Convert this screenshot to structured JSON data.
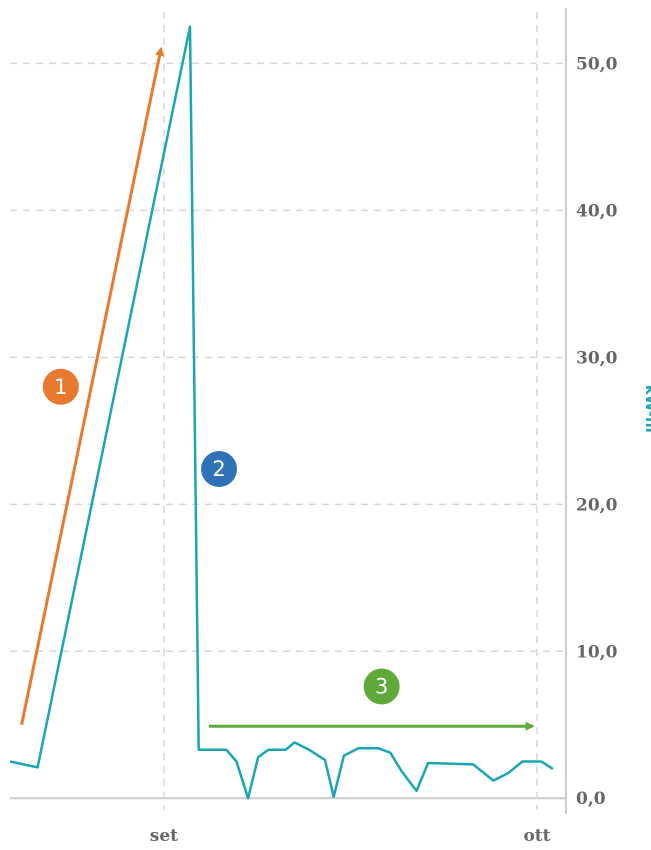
{
  "chart_data": {
    "type": "line",
    "ylabel": "kW-hr",
    "ylim": [
      -0.8,
      53.5
    ],
    "y_ticks": [
      {
        "value": 0,
        "label": "0,0"
      },
      {
        "value": 10,
        "label": "10,0"
      },
      {
        "value": 20,
        "label": "20,0"
      },
      {
        "value": 30,
        "label": "30,0"
      },
      {
        "value": 40,
        "label": "40,0"
      },
      {
        "value": 50,
        "label": "50,0"
      }
    ],
    "x_ticks": [
      {
        "position": 10.6,
        "label": "set"
      },
      {
        "position": 36.3,
        "label": "ott"
      }
    ],
    "xlim": [
      0,
      38.3
    ],
    "grid": true,
    "series": [
      {
        "color": "#1aa6b2",
        "points": [
          [
            0,
            2.5
          ],
          [
            1.9,
            2.1
          ],
          [
            12.4,
            52.5
          ],
          [
            13.0,
            3.3
          ],
          [
            14.9,
            3.3
          ],
          [
            15.6,
            2.5
          ],
          [
            16.4,
            0.0
          ],
          [
            17.1,
            2.8
          ],
          [
            17.8,
            3.3
          ],
          [
            19.0,
            3.3
          ],
          [
            19.6,
            3.8
          ],
          [
            20.6,
            3.3
          ],
          [
            21.7,
            2.6
          ],
          [
            22.3,
            0.1
          ],
          [
            23.0,
            2.9
          ],
          [
            24.0,
            3.4
          ],
          [
            25.4,
            3.4
          ],
          [
            26.2,
            3.1
          ],
          [
            27.0,
            1.8
          ],
          [
            28.0,
            0.5
          ],
          [
            28.8,
            2.4
          ],
          [
            31.9,
            2.3
          ],
          [
            33.3,
            1.2
          ],
          [
            34.3,
            1.7
          ],
          [
            35.3,
            2.5
          ],
          [
            36.6,
            2.5
          ],
          [
            37.4,
            2.0
          ]
        ]
      }
    ],
    "annotations": [
      {
        "label": "1",
        "type": "badge",
        "color": "#e87a30",
        "x": 3.5,
        "y": 28.0
      },
      {
        "label": "2",
        "type": "badge",
        "color": "#2e73b8",
        "x": 14.4,
        "y": 22.4
      },
      {
        "label": "3",
        "type": "badge",
        "color": "#5fa83a",
        "x": 25.6,
        "y": 7.6
      }
    ],
    "arrows": [
      {
        "name": "rise-arrow",
        "color": "#e87a30",
        "from": [
          0.8,
          5.0
        ],
        "to": [
          10.4,
          51.0
        ]
      },
      {
        "name": "flat-arrow",
        "color": "#5fa83a",
        "from": [
          13.7,
          4.9
        ],
        "to": [
          36.0,
          4.9
        ]
      }
    ]
  }
}
